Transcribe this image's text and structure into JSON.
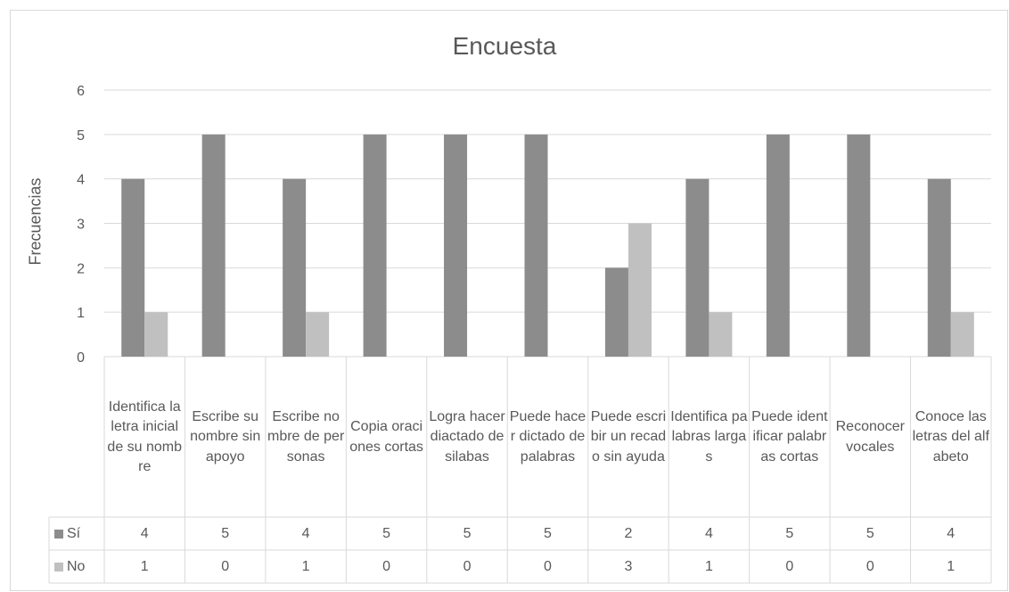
{
  "chart_data": {
    "type": "bar",
    "title": "Encuesta",
    "ylabel": "Frecuencias",
    "xlabel": "",
    "ylim": [
      0,
      6
    ],
    "yticks": [
      "0",
      "1",
      "2",
      "3",
      "4",
      "5",
      "6"
    ],
    "grid": true,
    "legend": "data-table",
    "categories": [
      "Identifica la letra inicial de su nombre",
      "Escribe su nombre sin apoyo",
      "Escribe nombre de personas",
      "Copia oraciones cortas",
      "Logra hacer diactado de silabas",
      "Puede hacer dictado de palabras",
      "Puede escribir un recado sin ayuda",
      "Identifica palabras largas",
      "Puede identificar palabras cortas",
      "Reconocer vocales",
      "Conoce las letras del alfabeto"
    ],
    "series": [
      {
        "name": "Sí",
        "color": "#8c8c8c",
        "values": [
          4,
          5,
          4,
          5,
          5,
          5,
          2,
          4,
          5,
          5,
          4
        ]
      },
      {
        "name": "No",
        "color": "#c0c0c0",
        "values": [
          1,
          0,
          1,
          0,
          0,
          0,
          3,
          1,
          0,
          0,
          1
        ]
      }
    ]
  }
}
